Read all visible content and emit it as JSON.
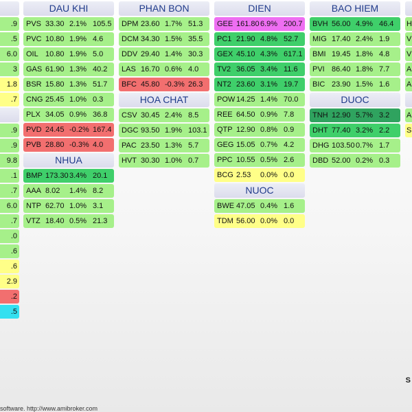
{
  "colors": {
    "bright_green": "#7dfa6f",
    "light_green": "#a6f08a",
    "mid_green": "#3fcf6a",
    "dark_green": "#2fa35f",
    "yellow": "#ffff88",
    "red": "#f26f6f",
    "magenta": "#ee6ef2",
    "cyan": "#33e0f0",
    "header_text": "#1f3a8a"
  },
  "footer": "software. http://www.amibroker.com",
  "right_fragment": "S",
  "left_fragments": [
    {
      "t": ".9",
      "c": "light_green"
    },
    {
      "t": ".5",
      "c": "light_green"
    },
    {
      "t": "6.0",
      "c": "light_green"
    },
    {
      "t": "3",
      "c": "light_green"
    },
    {
      "t": "1.8",
      "c": "yellow"
    },
    {
      "t": ".7",
      "c": "yellow"
    },
    {
      "t": "",
      "c": "gap"
    },
    {
      "t": ".9",
      "c": "light_green"
    },
    {
      "t": ".9",
      "c": "light_green"
    },
    {
      "t": "9.8",
      "c": "light_green"
    },
    {
      "t": ".1",
      "c": "light_green"
    },
    {
      "t": ".7",
      "c": "light_green"
    },
    {
      "t": "6.0",
      "c": "light_green"
    },
    {
      "t": ".7",
      "c": "light_green"
    },
    {
      "t": ".0",
      "c": "light_green"
    },
    {
      "t": ".6",
      "c": "light_green"
    },
    {
      "t": ".6",
      "c": "yellow"
    },
    {
      "t": "2.9",
      "c": "yellow"
    },
    {
      "t": ".2",
      "c": "red"
    },
    {
      "t": ".5",
      "c": "cyan"
    }
  ],
  "sectors": [
    {
      "name": "DAU KHI",
      "rows": [
        {
          "sym": "PVS",
          "price": "33.30",
          "chg": "2.1%",
          "vol": "105.5",
          "c": "light_green"
        },
        {
          "sym": "PVC",
          "price": "10.80",
          "chg": "1.9%",
          "vol": "4.6",
          "c": "light_green"
        },
        {
          "sym": "OIL",
          "price": "10.80",
          "chg": "1.9%",
          "vol": "5.0",
          "c": "light_green"
        },
        {
          "sym": "GAS",
          "price": "61.90",
          "chg": "1.3%",
          "vol": "40.2",
          "c": "light_green"
        },
        {
          "sym": "BSR",
          "price": "15.80",
          "chg": "1.3%",
          "vol": "51.7",
          "c": "light_green"
        },
        {
          "sym": "CNG",
          "price": "25.45",
          "chg": "1.0%",
          "vol": "0.3",
          "c": "light_green"
        },
        {
          "sym": "PLX",
          "price": "34.05",
          "chg": "0.9%",
          "vol": "36.8",
          "c": "light_green"
        },
        {
          "sym": "PVD",
          "price": "24.45",
          "chg": "-0.2%",
          "vol": "167.4",
          "c": "red"
        },
        {
          "sym": "PVB",
          "price": "28.80",
          "chg": "-0.3%",
          "vol": "4.0",
          "c": "red"
        }
      ]
    },
    {
      "name": "NHUA",
      "rows": [
        {
          "sym": "BMP",
          "price": "173.30",
          "chg": "3.4%",
          "vol": "20.1",
          "c": "mid_green"
        },
        {
          "sym": "AAA",
          "price": "8.02",
          "chg": "1.4%",
          "vol": "8.2",
          "c": "light_green"
        },
        {
          "sym": "NTP",
          "price": "62.70",
          "chg": "1.0%",
          "vol": "3.1",
          "c": "light_green"
        },
        {
          "sym": "VTZ",
          "price": "18.40",
          "chg": "0.5%",
          "vol": "21.3",
          "c": "light_green"
        }
      ]
    },
    {
      "name": "PHAN BON",
      "rows": [
        {
          "sym": "DPM",
          "price": "23.60",
          "chg": "1.7%",
          "vol": "51.3",
          "c": "light_green"
        },
        {
          "sym": "DCM",
          "price": "34.30",
          "chg": "1.5%",
          "vol": "35.5",
          "c": "light_green"
        },
        {
          "sym": "DDV",
          "price": "29.40",
          "chg": "1.4%",
          "vol": "30.3",
          "c": "light_green"
        },
        {
          "sym": "LAS",
          "price": "16.70",
          "chg": "0.6%",
          "vol": "4.0",
          "c": "light_green"
        },
        {
          "sym": "BFC",
          "price": "45.80",
          "chg": "-0.3%",
          "vol": "26.3",
          "c": "red"
        }
      ]
    },
    {
      "name": "HOA CHAT",
      "rows": [
        {
          "sym": "CSV",
          "price": "30.45",
          "chg": "2.4%",
          "vol": "8.5",
          "c": "light_green"
        },
        {
          "sym": "DGC",
          "price": "93.50",
          "chg": "1.9%",
          "vol": "103.1",
          "c": "light_green"
        },
        {
          "sym": "PAC",
          "price": "23.50",
          "chg": "1.3%",
          "vol": "5.7",
          "c": "light_green"
        },
        {
          "sym": "HVT",
          "price": "30.30",
          "chg": "1.0%",
          "vol": "0.7",
          "c": "light_green"
        }
      ]
    },
    {
      "name": "DIEN",
      "rows": [
        {
          "sym": "GEE",
          "price": "161.80",
          "chg": "6.9%",
          "vol": "200.7",
          "c": "magenta"
        },
        {
          "sym": "PC1",
          "price": "21.90",
          "chg": "4.8%",
          "vol": "52.7",
          "c": "mid_green"
        },
        {
          "sym": "GEX",
          "price": "45.10",
          "chg": "4.3%",
          "vol": "617.1",
          "c": "mid_green"
        },
        {
          "sym": "TV2",
          "price": "36.05",
          "chg": "3.4%",
          "vol": "11.6",
          "c": "mid_green"
        },
        {
          "sym": "NT2",
          "price": "23.60",
          "chg": "3.1%",
          "vol": "19.7",
          "c": "mid_green"
        },
        {
          "sym": "POW",
          "price": "14.25",
          "chg": "1.4%",
          "vol": "70.0",
          "c": "light_green"
        },
        {
          "sym": "REE",
          "price": "64.50",
          "chg": "0.9%",
          "vol": "7.8",
          "c": "light_green"
        },
        {
          "sym": "QTP",
          "price": "12.90",
          "chg": "0.8%",
          "vol": "0.9",
          "c": "light_green"
        },
        {
          "sym": "GEG",
          "price": "15.05",
          "chg": "0.7%",
          "vol": "4.2",
          "c": "light_green"
        },
        {
          "sym": "PPC",
          "price": "10.55",
          "chg": "0.5%",
          "vol": "2.6",
          "c": "light_green"
        },
        {
          "sym": "BCG",
          "price": "2.53",
          "chg": "0.0%",
          "vol": "0.0",
          "c": "yellow"
        }
      ]
    },
    {
      "name": "NUOC",
      "rows": [
        {
          "sym": "BWE",
          "price": "47.05",
          "chg": "0.4%",
          "vol": "1.6",
          "c": "light_green"
        },
        {
          "sym": "TDM",
          "price": "56.00",
          "chg": "0.0%",
          "vol": "0.0",
          "c": "yellow"
        }
      ]
    },
    {
      "name": "BAO HIEM",
      "rows": [
        {
          "sym": "BVH",
          "price": "56.00",
          "chg": "4.9%",
          "vol": "46.4",
          "c": "mid_green"
        },
        {
          "sym": "MIG",
          "price": "17.40",
          "chg": "2.4%",
          "vol": "1.9",
          "c": "light_green"
        },
        {
          "sym": "BMI",
          "price": "19.45",
          "chg": "1.8%",
          "vol": "4.8",
          "c": "light_green"
        },
        {
          "sym": "PVI",
          "price": "86.40",
          "chg": "1.8%",
          "vol": "7.7",
          "c": "light_green"
        },
        {
          "sym": "BIC",
          "price": "23.90",
          "chg": "1.5%",
          "vol": "1.6",
          "c": "light_green"
        }
      ]
    },
    {
      "name": "DUOC",
      "rows": [
        {
          "sym": "TNH",
          "price": "12.90",
          "chg": "5.7%",
          "vol": "3.2",
          "c": "dark_green"
        },
        {
          "sym": "DHT",
          "price": "77.40",
          "chg": "3.2%",
          "vol": "2.2",
          "c": "mid_green"
        },
        {
          "sym": "DHG",
          "price": "103.50",
          "chg": "0.7%",
          "vol": "1.7",
          "c": "light_green"
        },
        {
          "sym": "DBD",
          "price": "52.00",
          "chg": "0.2%",
          "vol": "0.3",
          "c": "light_green"
        }
      ]
    }
  ],
  "right_edge": [
    {
      "t": "H",
      "c": "light_green"
    },
    {
      "t": "V",
      "c": "light_green"
    },
    {
      "t": "V",
      "c": "light_green"
    },
    {
      "t": "A",
      "c": "light_green"
    },
    {
      "t": "A",
      "c": "light_green"
    },
    {
      "t": "",
      "c": "gap"
    },
    {
      "t": "A",
      "c": "light_green"
    },
    {
      "t": "S",
      "c": "yellow"
    }
  ]
}
